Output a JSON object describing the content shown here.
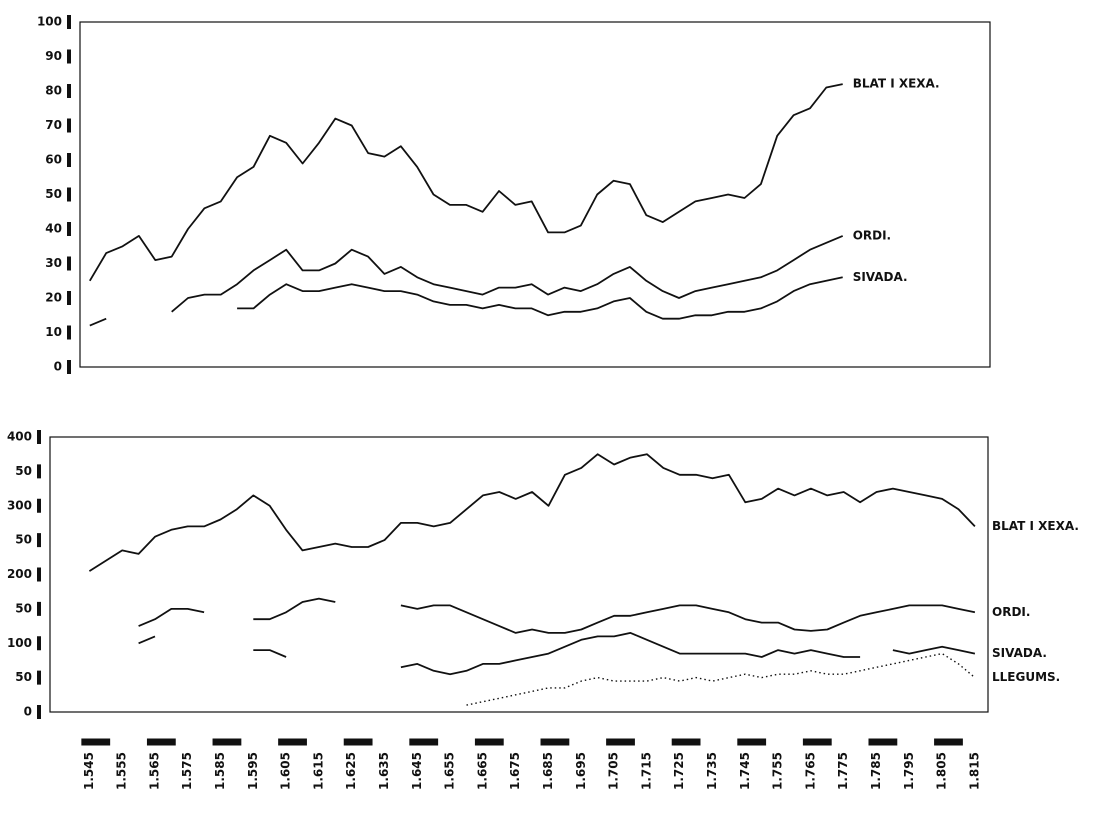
{
  "chart_data": [
    {
      "type": "line",
      "x": [
        1545,
        1550,
        1555,
        1560,
        1565,
        1570,
        1575,
        1580,
        1585,
        1590,
        1595,
        1600,
        1605,
        1610,
        1615,
        1620,
        1625,
        1630,
        1635,
        1640,
        1645,
        1650,
        1655,
        1660,
        1665,
        1670,
        1675,
        1680,
        1685,
        1690,
        1695,
        1700,
        1705,
        1710,
        1715,
        1720,
        1725,
        1730,
        1735,
        1740,
        1745,
        1750,
        1755,
        1760,
        1765,
        1770,
        1775,
        1780,
        1785,
        1790,
        1795,
        1800,
        1805,
        1810,
        1815
      ],
      "xlim": [
        1542,
        1820
      ],
      "ylim": [
        0,
        100
      ],
      "yticks": [
        0,
        10,
        20,
        30,
        40,
        50,
        60,
        70,
        80,
        90,
        100
      ],
      "series": [
        {
          "name": "BLAT I XEXA.",
          "color": "#111111",
          "style": "solid",
          "values": [
            25,
            33,
            35,
            38,
            31,
            32,
            40,
            46,
            48,
            55,
            58,
            67,
            65,
            59,
            65,
            72,
            70,
            62,
            61,
            64,
            58,
            50,
            47,
            47,
            45,
            51,
            47,
            48,
            39,
            39,
            41,
            50,
            54,
            53,
            44,
            42,
            45,
            48,
            49,
            50,
            49,
            53,
            67,
            73,
            75,
            81,
            82,
            null,
            null,
            null,
            null,
            null,
            null,
            null,
            null
          ]
        },
        {
          "name": "ORDI.",
          "color": "#111111",
          "style": "solid",
          "values": [
            12,
            14,
            null,
            null,
            null,
            16,
            20,
            21,
            21,
            24,
            28,
            31,
            34,
            28,
            28,
            30,
            34,
            32,
            27,
            29,
            26,
            24,
            23,
            22,
            21,
            23,
            23,
            24,
            21,
            23,
            22,
            24,
            27,
            29,
            25,
            22,
            20,
            22,
            23,
            24,
            25,
            26,
            28,
            31,
            34,
            36,
            38,
            null,
            null,
            null,
            null,
            null,
            null,
            null,
            null
          ]
        },
        {
          "name": "SIVADA.",
          "color": "#111111",
          "style": "solid",
          "values": [
            null,
            null,
            null,
            null,
            null,
            null,
            null,
            null,
            null,
            17,
            17,
            21,
            24,
            22,
            22,
            23,
            24,
            23,
            22,
            22,
            21,
            19,
            18,
            18,
            17,
            18,
            17,
            17,
            15,
            16,
            16,
            17,
            19,
            20,
            16,
            14,
            14,
            15,
            15,
            16,
            16,
            17,
            19,
            22,
            24,
            25,
            26,
            null,
            null,
            null,
            null,
            null,
            null,
            null,
            null
          ]
        }
      ]
    },
    {
      "type": "line",
      "x": [
        1545,
        1550,
        1555,
        1560,
        1565,
        1570,
        1575,
        1580,
        1585,
        1590,
        1595,
        1600,
        1605,
        1610,
        1615,
        1620,
        1625,
        1630,
        1635,
        1640,
        1645,
        1650,
        1655,
        1660,
        1665,
        1670,
        1675,
        1680,
        1685,
        1690,
        1695,
        1700,
        1705,
        1710,
        1715,
        1720,
        1725,
        1730,
        1735,
        1740,
        1745,
        1750,
        1755,
        1760,
        1765,
        1770,
        1775,
        1780,
        1785,
        1790,
        1795,
        1800,
        1805,
        1810,
        1815
      ],
      "xlim": [
        1533,
        1819
      ],
      "xticks": [
        {
          "value": 1545,
          "label": "1.545"
        },
        {
          "value": 1555,
          "label": "1.555"
        },
        {
          "value": 1565,
          "label": "1.565"
        },
        {
          "value": 1575,
          "label": "1.575"
        },
        {
          "value": 1585,
          "label": "1.585"
        },
        {
          "value": 1595,
          "label": "1.595"
        },
        {
          "value": 1605,
          "label": "1.605"
        },
        {
          "value": 1615,
          "label": "1.615"
        },
        {
          "value": 1625,
          "label": "1.625"
        },
        {
          "value": 1635,
          "label": "1.635"
        },
        {
          "value": 1645,
          "label": "1.645"
        },
        {
          "value": 1655,
          "label": "1.655"
        },
        {
          "value": 1665,
          "label": "1.665"
        },
        {
          "value": 1675,
          "label": "1.675"
        },
        {
          "value": 1685,
          "label": "1.685"
        },
        {
          "value": 1695,
          "label": "1.695"
        },
        {
          "value": 1705,
          "label": "1.705"
        },
        {
          "value": 1715,
          "label": "1.715"
        },
        {
          "value": 1725,
          "label": "1.725"
        },
        {
          "value": 1735,
          "label": "1.735"
        },
        {
          "value": 1745,
          "label": "1.745"
        },
        {
          "value": 1755,
          "label": "1.755"
        },
        {
          "value": 1765,
          "label": "1.765"
        },
        {
          "value": 1775,
          "label": "1.775"
        },
        {
          "value": 1785,
          "label": "1.785"
        },
        {
          "value": 1795,
          "label": "1.795"
        },
        {
          "value": 1805,
          "label": "1.805"
        },
        {
          "value": 1815,
          "label": "1.815"
        }
      ],
      "ylim": [
        0,
        400
      ],
      "yticks": [
        0,
        50,
        100,
        {
          "value": 150,
          "label": "50"
        },
        200,
        {
          "value": 250,
          "label": "50"
        },
        300,
        {
          "value": 350,
          "label": "50"
        },
        400
      ],
      "series": [
        {
          "name": "BLAT I XEXA.",
          "color": "#111111",
          "style": "solid",
          "values": [
            205,
            220,
            235,
            230,
            255,
            265,
            270,
            270,
            280,
            295,
            315,
            300,
            265,
            235,
            240,
            245,
            240,
            240,
            250,
            275,
            275,
            270,
            275,
            295,
            315,
            320,
            310,
            320,
            300,
            345,
            355,
            375,
            360,
            370,
            375,
            355,
            345,
            345,
            340,
            345,
            305,
            310,
            325,
            315,
            325,
            315,
            320,
            305,
            320,
            325,
            320,
            315,
            310,
            295,
            270
          ]
        },
        {
          "name": "ORDI.",
          "color": "#111111",
          "style": "solid",
          "values": [
            null,
            null,
            null,
            125,
            135,
            150,
            150,
            145,
            null,
            null,
            135,
            135,
            145,
            160,
            165,
            160,
            null,
            null,
            null,
            155,
            150,
            155,
            155,
            145,
            135,
            125,
            115,
            120,
            115,
            115,
            120,
            130,
            140,
            140,
            145,
            150,
            155,
            155,
            150,
            145,
            135,
            130,
            130,
            120,
            118,
            120,
            130,
            140,
            145,
            150,
            155,
            155,
            155,
            150,
            145
          ]
        },
        {
          "name": "SIVADA.",
          "color": "#111111",
          "style": "solid",
          "values": [
            null,
            null,
            null,
            100,
            110,
            null,
            null,
            null,
            null,
            null,
            90,
            90,
            80,
            null,
            null,
            null,
            null,
            null,
            null,
            65,
            70,
            60,
            55,
            60,
            70,
            70,
            75,
            80,
            85,
            95,
            105,
            110,
            110,
            115,
            105,
            95,
            85,
            85,
            85,
            85,
            85,
            80,
            90,
            85,
            90,
            85,
            80,
            80,
            null,
            90,
            85,
            90,
            95,
            90,
            85
          ]
        },
        {
          "name": "LLEGUMS.",
          "color": "#111111",
          "style": "dotted",
          "values": [
            null,
            null,
            null,
            null,
            null,
            null,
            null,
            null,
            null,
            null,
            null,
            null,
            null,
            null,
            null,
            null,
            null,
            null,
            null,
            null,
            null,
            null,
            null,
            10,
            15,
            20,
            25,
            30,
            35,
            35,
            45,
            50,
            45,
            45,
            45,
            50,
            45,
            50,
            45,
            50,
            55,
            50,
            55,
            55,
            60,
            55,
            55,
            60,
            65,
            70,
            75,
            80,
            85,
            70,
            50
          ]
        }
      ]
    }
  ]
}
